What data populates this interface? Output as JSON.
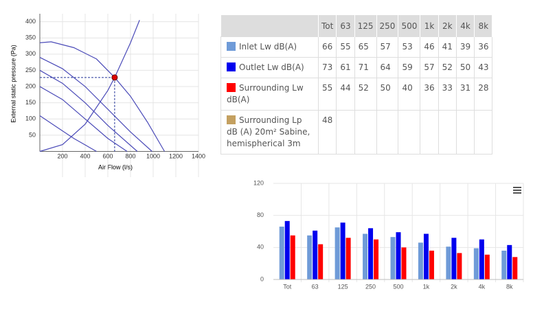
{
  "chart_data": [
    {
      "type": "line",
      "xlabel": "Air Flow (l/s)",
      "ylabel": "External static pressure (Pa)",
      "xlim": [
        0,
        1400
      ],
      "xticks": [
        200,
        400,
        600,
        800,
        1000,
        1200,
        1400
      ],
      "ylim": [
        0,
        415
      ],
      "yticks": [
        50,
        100,
        150,
        200,
        250,
        300,
        350,
        400
      ],
      "grid": true,
      "series": [
        {
          "color": "#4a4ab8",
          "x": [
            0,
            100,
            300,
            500,
            660,
            800,
            950,
            1100
          ],
          "values": [
            335,
            338,
            320,
            285,
            228,
            170,
            90,
            0
          ]
        },
        {
          "color": "#4a4ab8",
          "x": [
            0,
            200,
            400,
            600,
            800,
            990
          ],
          "values": [
            290,
            255,
            200,
            130,
            60,
            0
          ]
        },
        {
          "color": "#4a4ab8",
          "x": [
            0,
            200,
            400,
            600,
            860
          ],
          "values": [
            250,
            210,
            150,
            80,
            0
          ]
        },
        {
          "color": "#4a4ab8",
          "x": [
            0,
            200,
            400,
            600,
            770
          ],
          "values": [
            200,
            160,
            100,
            40,
            0
          ]
        },
        {
          "color": "#4a4ab8",
          "x": [
            0,
            150,
            300,
            500
          ],
          "values": [
            110,
            75,
            40,
            0
          ]
        },
        {
          "color": "#4a4ab8",
          "x": [
            0,
            200,
            400,
            600,
            660,
            800,
            880
          ],
          "values": [
            0,
            21,
            84,
            188,
            228,
            335,
            405
          ]
        }
      ],
      "operating_point": {
        "x": 660,
        "y": 228,
        "color": "#dd0000"
      }
    },
    {
      "type": "bar",
      "categories": [
        "Tot",
        "63",
        "125",
        "250",
        "500",
        "1k",
        "2k",
        "4k",
        "8k"
      ],
      "ylim": [
        0,
        120
      ],
      "yticks": [
        0,
        40,
        80,
        120
      ],
      "grid": true,
      "series": [
        {
          "color": "#6f9bd8",
          "values": [
            66,
            55,
            65,
            57,
            53,
            46,
            41,
            39,
            36
          ]
        },
        {
          "color": "#0000ee",
          "values": [
            73,
            61,
            71,
            64,
            59,
            57,
            52,
            50,
            43
          ]
        },
        {
          "color": "#ff0000",
          "values": [
            55,
            44,
            52,
            50,
            40,
            36,
            33,
            31,
            28
          ]
        }
      ]
    }
  ],
  "table": {
    "columns": [
      "Tot",
      "63",
      "125",
      "250",
      "500",
      "1k",
      "2k",
      "4k",
      "8k"
    ],
    "rows": [
      {
        "label": "Inlet Lw dB(A)",
        "color": "#6f9bd8",
        "values": [
          66,
          55,
          65,
          57,
          53,
          46,
          41,
          39,
          36
        ]
      },
      {
        "label": "Outlet Lw dB(A)",
        "color": "#0000ee",
        "values": [
          73,
          61,
          71,
          64,
          59,
          57,
          52,
          50,
          43
        ]
      },
      {
        "label": "Surrounding Lw dB(A)",
        "color": "#ff0000",
        "values": [
          55,
          44,
          52,
          50,
          40,
          36,
          33,
          31,
          28
        ]
      },
      {
        "label": "Surrounding Lp dB (A) 20m² Sabine, hemispherical 3m",
        "color": "#c4a060",
        "values": [
          48
        ]
      }
    ]
  }
}
